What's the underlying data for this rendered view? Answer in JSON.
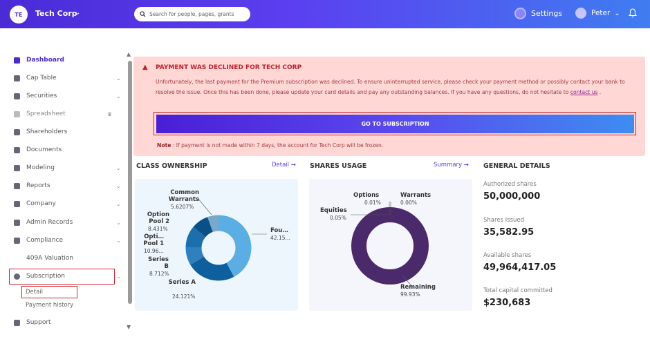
{
  "header": {
    "avatar": "TE",
    "company": "Tech Corp",
    "search_placeholder": "Search for people, pages, grants",
    "settings": "Settings",
    "user": "Peter"
  },
  "sidebar": {
    "items": [
      {
        "label": "Dashboard",
        "arrow": ""
      },
      {
        "label": "Cap Table",
        "arrow": "⌄"
      },
      {
        "label": "Securities",
        "arrow": "⌄"
      },
      {
        "label": "Spreadsheet",
        "arrow": "♛"
      },
      {
        "label": "Shareholders",
        "arrow": ""
      },
      {
        "label": "Documents",
        "arrow": ""
      },
      {
        "label": "Modeling",
        "arrow": "⌄"
      },
      {
        "label": "Reports",
        "arrow": "⌄"
      },
      {
        "label": "Company",
        "arrow": "⌄"
      },
      {
        "label": "Admin Records",
        "arrow": "⌄"
      },
      {
        "label": "Compliance",
        "arrow": "⌄"
      },
      {
        "label": "409A Valuation",
        "arrow": ""
      },
      {
        "label": "Subscription",
        "arrow": "⌄"
      },
      {
        "label": "Support",
        "arrow": ""
      }
    ],
    "sub_detail": "Detail",
    "sub_payment": "Payment history"
  },
  "alert": {
    "title": "PAYMENT WAS DECLINED FOR TECH CORP",
    "message": "Unfortunately, the last payment for the Premium subscription was declined. To ensure uninterrupted service, please check your payment method or possibly contact your bank to resolve the issue. Once this has been done, please update your card details and pay any outstanding balances. If you have any questions, do not hesitate to ",
    "link": "contact us",
    "link_after": " .",
    "button": "GO TO SUBSCRIPTION",
    "note_label": "Note",
    "note_text": " : If payment is not made within 7 days, the account for Tech Corp will be frozen."
  },
  "class_ownership": {
    "title": "CLASS OWNERSHIP",
    "link": "Detail",
    "labels": [
      {
        "name": "Common Warrants",
        "pct": "5.6207%"
      },
      {
        "name": "Option Pool 2",
        "pct": "8.431%"
      },
      {
        "name": "Opti… Pool 1",
        "pct": "10.96…"
      },
      {
        "name": "Series B",
        "pct": "8.712%"
      },
      {
        "name": "Series A",
        "pct": "24.121%"
      },
      {
        "name": "Fou…",
        "pct": "42.15…"
      }
    ]
  },
  "shares_usage": {
    "title": "SHARES USAGE",
    "link": "Summary",
    "labels": [
      {
        "name": "Options",
        "pct": "0.01%"
      },
      {
        "name": "Warrants",
        "pct": "0.00%"
      },
      {
        "name": "Equities",
        "pct": "0.05%"
      },
      {
        "name": "Remaining",
        "pct": "99.93%"
      }
    ]
  },
  "general": {
    "title": "GENERAL DETAILS",
    "items": [
      {
        "label": "Authorized shares",
        "value": "50,000,000"
      },
      {
        "label": "Shares Issued",
        "value": "35,582.95"
      },
      {
        "label": "Available shares",
        "value": "49,964,417.05"
      },
      {
        "label": "Total capital committed",
        "value": "$230,683"
      }
    ]
  },
  "colors": {
    "brand": "#4a2bd6",
    "danger": "#c0212b"
  }
}
